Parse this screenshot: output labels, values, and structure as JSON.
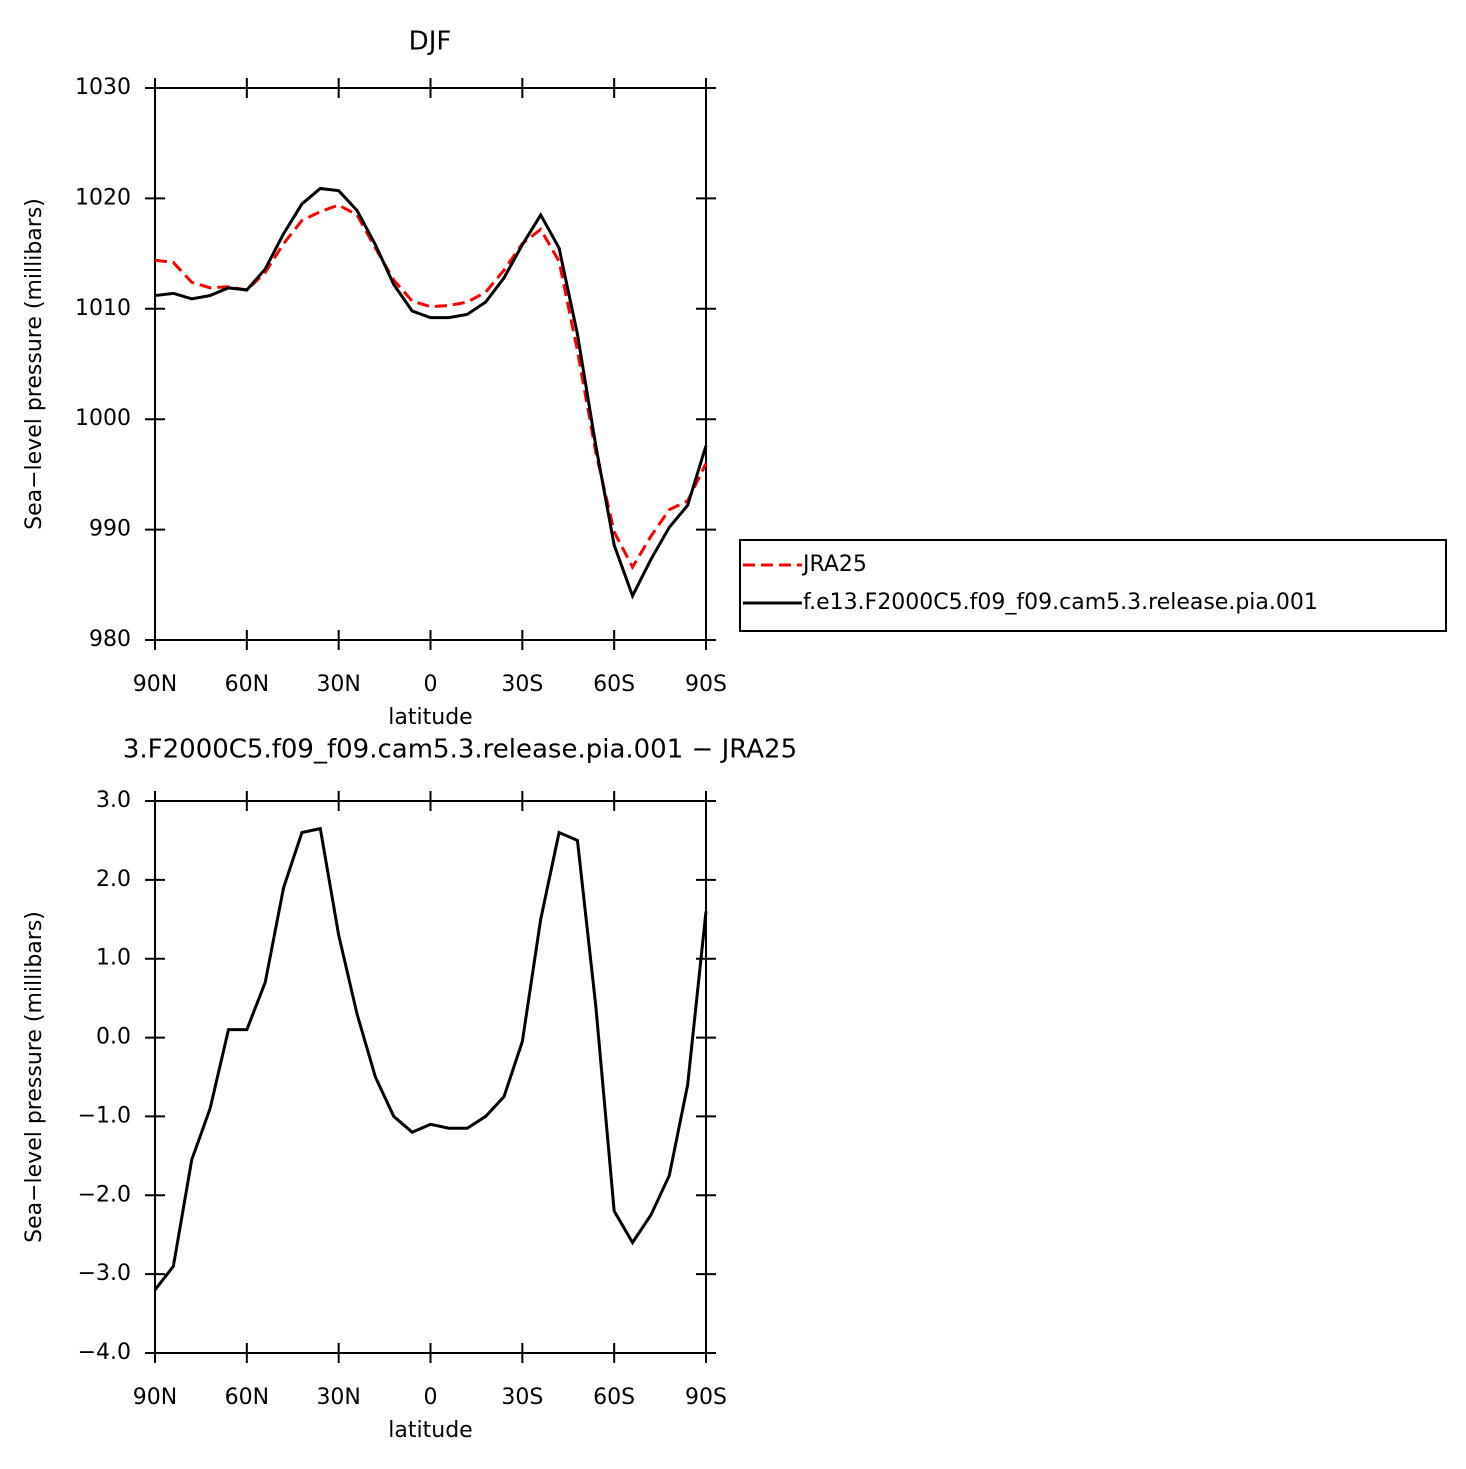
{
  "chart_data": [
    {
      "type": "line",
      "title": "DJF",
      "xlabel": "latitude",
      "ylabel": "Sea−level pressure (millibars)",
      "x": [
        90,
        84,
        78,
        72,
        66,
        60,
        54,
        48,
        42,
        36,
        30,
        24,
        18,
        12,
        6,
        0,
        -6,
        -12,
        -18,
        -24,
        -30,
        -36,
        -42,
        -48,
        -54,
        -60,
        -66,
        -72,
        -78,
        -84,
        -90
      ],
      "xlim": [
        90,
        -90
      ],
      "xticks": [
        {
          "value": 90,
          "label": "90N"
        },
        {
          "value": 60,
          "label": "60N"
        },
        {
          "value": 30,
          "label": "30N"
        },
        0,
        {
          "value": -30,
          "label": "30S"
        },
        {
          "value": -60,
          "label": "60S"
        },
        {
          "value": -90,
          "label": "90S"
        }
      ],
      "ylim": [
        980,
        1030
      ],
      "yticks": [
        980,
        990,
        1000,
        1010,
        1020,
        1030
      ],
      "legend": "right",
      "series": [
        {
          "name": "JRA25",
          "color": "#ff0000",
          "linestyle": "dashed",
          "values": [
            1014.4,
            1014.2,
            1012.4,
            1011.9,
            1012.0,
            1011.7,
            1013.3,
            1015.9,
            1018.0,
            1018.8,
            1019.4,
            1018.5,
            1015.5,
            1012.6,
            1010.7,
            1010.2,
            1010.3,
            1010.6,
            1011.5,
            1013.5,
            1015.9,
            1017.2,
            1014.3,
            1006.2,
            997.0,
            989.8,
            986.6,
            989.4,
            991.8,
            992.6,
            996.0
          ]
        },
        {
          "name": "f.e13.F2000C5.f09_f09.cam5.3.release.pia.001",
          "color": "#000000",
          "linestyle": "solid",
          "values": [
            1011.2,
            1011.4,
            1010.9,
            1011.2,
            1011.9,
            1011.7,
            1013.6,
            1016.8,
            1019.5,
            1020.9,
            1020.7,
            1018.9,
            1015.8,
            1012.2,
            1009.8,
            1009.2,
            1009.2,
            1009.5,
            1010.6,
            1012.8,
            1015.8,
            1018.5,
            1015.5,
            1007.7,
            997.6,
            988.6,
            984.0,
            987.3,
            990.2,
            992.2,
            997.6
          ]
        }
      ]
    },
    {
      "type": "line",
      "title": "3.F2000C5.f09_f09.cam5.3.release.pia.001 − JRA25",
      "xlabel": "latitude",
      "ylabel": "Sea−level pressure (millibars)",
      "x": [
        90,
        84,
        78,
        72,
        66,
        60,
        54,
        48,
        42,
        36,
        30,
        24,
        18,
        12,
        6,
        0,
        -6,
        -12,
        -18,
        -24,
        -30,
        -36,
        -42,
        -48,
        -54,
        -60,
        -66,
        -72,
        -78,
        -84,
        -90
      ],
      "xlim": [
        90,
        -90
      ],
      "xticks": [
        {
          "value": 90,
          "label": "90N"
        },
        {
          "value": 60,
          "label": "60N"
        },
        {
          "value": 30,
          "label": "30N"
        },
        0,
        {
          "value": -30,
          "label": "30S"
        },
        {
          "value": -60,
          "label": "60S"
        },
        {
          "value": -90,
          "label": "90S"
        }
      ],
      "ylim": [
        -4,
        3
      ],
      "yticks": [
        {
          "value": -4,
          "label": "−4.0"
        },
        {
          "value": -3,
          "label": "−3.0"
        },
        {
          "value": -2,
          "label": "−2.0"
        },
        {
          "value": -1,
          "label": "−1.0"
        },
        {
          "value": 0,
          "label": "0.0"
        },
        {
          "value": 1,
          "label": "1.0"
        },
        {
          "value": 2,
          "label": "2.0"
        },
        {
          "value": 3,
          "label": "3.0"
        }
      ],
      "series": [
        {
          "color": "#000000",
          "linestyle": "solid",
          "values": [
            -3.2,
            -2.9,
            -1.55,
            -0.9,
            0.1,
            0.1,
            0.7,
            1.9,
            2.6,
            2.65,
            1.3,
            0.3,
            -0.5,
            -1.0,
            -1.2,
            -1.1,
            -1.15,
            -1.15,
            -1.0,
            -0.75,
            -0.05,
            1.5,
            2.6,
            2.5,
            0.4,
            -2.2,
            -2.6,
            -2.25,
            -1.75,
            -0.6,
            1.6
          ]
        }
      ]
    }
  ]
}
